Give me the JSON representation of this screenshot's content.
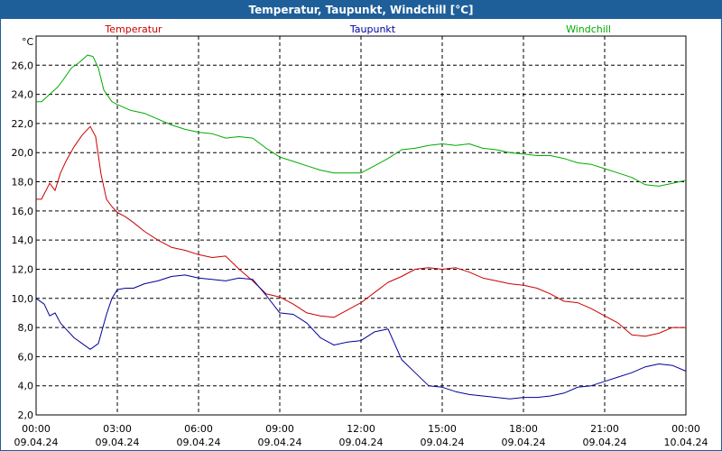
{
  "chart_data": {
    "type": "line",
    "title": "Temperatur, Taupunkt, Windchill [°C]",
    "ylabel": "°C",
    "xlabel": "",
    "ylim": [
      2,
      28
    ],
    "xlim": [
      0,
      24
    ],
    "grid": true,
    "y_ticks": [
      "2,0",
      "4,0",
      "6,0",
      "8,0",
      "10,0",
      "12,0",
      "14,0",
      "16,0",
      "18,0",
      "20,0",
      "22,0",
      "24,0",
      "26,0"
    ],
    "x_ticks": [
      {
        "time": "00:00",
        "date": "09.04.24"
      },
      {
        "time": "03:00",
        "date": "09.04.24"
      },
      {
        "time": "06:00",
        "date": "09.04.24"
      },
      {
        "time": "09:00",
        "date": "09.04.24"
      },
      {
        "time": "12:00",
        "date": "09.04.24"
      },
      {
        "time": "15:00",
        "date": "09.04.24"
      },
      {
        "time": "18:00",
        "date": "09.04.24"
      },
      {
        "time": "21:00",
        "date": "09.04.24"
      },
      {
        "time": "00:00",
        "date": "10.04.24"
      }
    ],
    "series": [
      {
        "name": "Temperatur",
        "color": "#cc0000",
        "x": [
          0,
          0.2,
          0.5,
          0.7,
          0.9,
          1.1,
          1.4,
          1.7,
          2.0,
          2.2,
          2.4,
          2.6,
          2.8,
          3.0,
          3.3,
          3.6,
          4.0,
          4.5,
          5.0,
          5.5,
          6.0,
          6.5,
          7.0,
          7.5,
          8.0,
          8.5,
          9.0,
          9.5,
          10.0,
          10.5,
          11.0,
          11.5,
          12.0,
          12.5,
          13.0,
          13.5,
          14.0,
          14.5,
          15.0,
          15.5,
          16.0,
          16.5,
          17.0,
          17.5,
          18.0,
          18.5,
          19.0,
          19.5,
          20.0,
          20.5,
          21.0,
          21.5,
          22.0,
          22.5,
          23.0,
          23.5,
          24.0
        ],
        "values": [
          16.8,
          16.8,
          17.9,
          17.4,
          18.6,
          19.4,
          20.4,
          21.2,
          21.8,
          21.1,
          18.5,
          16.8,
          16.3,
          15.9,
          15.6,
          15.2,
          14.6,
          14.0,
          13.5,
          13.3,
          13.0,
          12.8,
          12.9,
          12.0,
          11.2,
          10.3,
          10.1,
          9.6,
          9.0,
          8.8,
          8.7,
          9.2,
          9.7,
          10.4,
          11.1,
          11.5,
          12.0,
          12.1,
          12.0,
          12.1,
          11.8,
          11.4,
          11.2,
          11.0,
          10.9,
          10.7,
          10.3,
          9.8,
          9.7,
          9.3,
          8.8,
          8.3,
          7.5,
          7.4,
          7.6,
          8.0,
          8.0
        ]
      },
      {
        "name": "Taupunkt",
        "color": "#000099",
        "x": [
          0,
          0.3,
          0.5,
          0.7,
          0.9,
          1.1,
          1.4,
          1.7,
          2.0,
          2.3,
          2.6,
          2.8,
          3.0,
          3.3,
          3.6,
          4.0,
          4.5,
          5.0,
          5.5,
          6.0,
          6.5,
          7.0,
          7.5,
          8.0,
          8.5,
          9.0,
          9.5,
          10.0,
          10.5,
          11.0,
          11.5,
          12.0,
          12.5,
          13.0,
          13.5,
          14.0,
          14.5,
          15.0,
          15.5,
          16.0,
          16.5,
          17.0,
          17.5,
          18.0,
          18.5,
          19.0,
          19.5,
          20.0,
          20.5,
          21.0,
          21.5,
          22.0,
          22.5,
          23.0,
          23.5,
          24.0
        ],
        "values": [
          10.0,
          9.6,
          8.8,
          9.0,
          8.3,
          7.9,
          7.3,
          6.9,
          6.5,
          6.9,
          8.9,
          10.0,
          10.6,
          10.7,
          10.7,
          11.0,
          11.2,
          11.5,
          11.6,
          11.4,
          11.3,
          11.2,
          11.4,
          11.3,
          10.2,
          9.0,
          8.9,
          8.3,
          7.3,
          6.8,
          7.0,
          7.1,
          7.7,
          7.9,
          5.8,
          4.9,
          4.0,
          3.9,
          3.6,
          3.4,
          3.3,
          3.2,
          3.1,
          3.2,
          3.2,
          3.3,
          3.5,
          3.9,
          4.0,
          4.3,
          4.6,
          4.9,
          5.3,
          5.5,
          5.4,
          5.0
        ]
      },
      {
        "name": "Windchill",
        "color": "#00aa00",
        "x": [
          0,
          0.2,
          0.5,
          0.8,
          1.0,
          1.3,
          1.6,
          1.9,
          2.1,
          2.3,
          2.5,
          2.8,
          3.0,
          3.5,
          4.0,
          4.5,
          5.0,
          5.5,
          6.0,
          6.5,
          7.0,
          7.5,
          8.0,
          8.5,
          9.0,
          9.5,
          10.0,
          10.5,
          11.0,
          11.5,
          12.0,
          12.5,
          13.0,
          13.5,
          14.0,
          14.5,
          15.0,
          15.5,
          16.0,
          16.5,
          17.0,
          17.5,
          18.0,
          18.5,
          19.0,
          19.5,
          20.0,
          20.5,
          21.0,
          21.5,
          22.0,
          22.5,
          23.0,
          23.5,
          24.0
        ],
        "values": [
          23.5,
          23.5,
          24.0,
          24.5,
          25.0,
          25.8,
          26.2,
          26.7,
          26.6,
          25.8,
          24.3,
          23.5,
          23.3,
          22.9,
          22.7,
          22.3,
          21.9,
          21.6,
          21.4,
          21.3,
          21.0,
          21.1,
          21.0,
          20.3,
          19.7,
          19.4,
          19.1,
          18.8,
          18.6,
          18.6,
          18.6,
          19.1,
          19.6,
          20.2,
          20.3,
          20.5,
          20.6,
          20.5,
          20.6,
          20.3,
          20.2,
          20.0,
          19.9,
          19.8,
          19.8,
          19.6,
          19.3,
          19.2,
          18.9,
          18.6,
          18.3,
          17.8,
          17.7,
          17.9,
          18.1
        ]
      }
    ]
  }
}
